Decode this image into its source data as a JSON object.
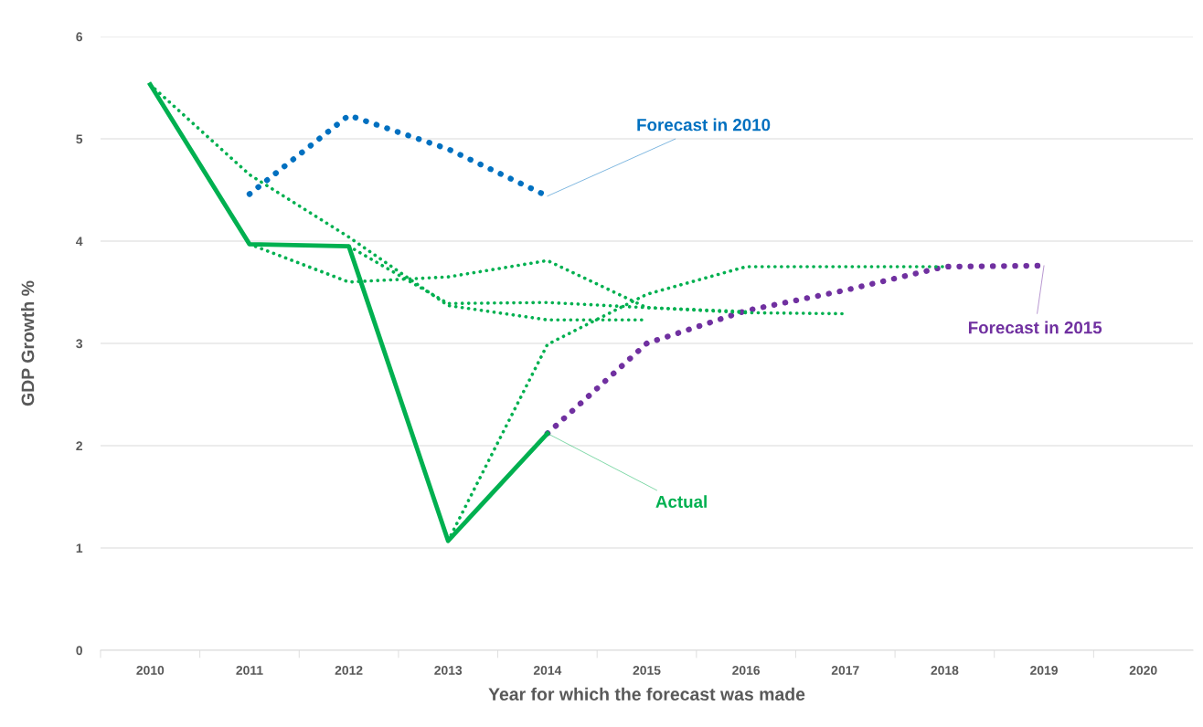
{
  "chart_data": {
    "type": "line",
    "xlabel": "Year for which the forecast was made",
    "ylabel": "GDP Growth %",
    "categories": [
      "2010",
      "2011",
      "2012",
      "2013",
      "2014",
      "2015",
      "2016",
      "2017",
      "2018",
      "2019",
      "2020"
    ],
    "ylim": [
      0,
      6
    ],
    "yticks": [
      0,
      1,
      2,
      3,
      4,
      5,
      6
    ],
    "grid": "y",
    "legend": false,
    "marker": "none",
    "series": [
      {
        "name": "Actual",
        "color": "#00b050",
        "line_style": "solid",
        "values": [
          5.53,
          3.97,
          3.95,
          1.07,
          2.12,
          null,
          null,
          null,
          null,
          null,
          null
        ]
      },
      {
        "name": "Forecast in 2010",
        "color": "#0070c0",
        "line_style": "dotted",
        "values": [
          null,
          4.46,
          5.23,
          4.9,
          4.44,
          null,
          null,
          null,
          null,
          null,
          null
        ]
      },
      {
        "color": "#00b050",
        "line_style": "dotted",
        "values": [
          5.53,
          4.65,
          4.04,
          3.37,
          3.23,
          3.23,
          null,
          null,
          null,
          null,
          null
        ]
      },
      {
        "color": "#00b050",
        "line_style": "dotted",
        "values": [
          null,
          3.97,
          3.6,
          3.65,
          3.81,
          3.35,
          3.3,
          3.29,
          null,
          null,
          null
        ]
      },
      {
        "color": "#00b050",
        "line_style": "dotted",
        "values": [
          null,
          null,
          3.95,
          3.39,
          3.4,
          3.35,
          3.31,
          null,
          null,
          null,
          null
        ]
      },
      {
        "color": "#00b050",
        "line_style": "dotted",
        "values": [
          null,
          null,
          null,
          1.07,
          2.99,
          3.48,
          3.75,
          3.75,
          3.75,
          null,
          null
        ]
      },
      {
        "name": "Forecast in 2015",
        "color": "#7030a0",
        "line_style": "dotted",
        "values": [
          null,
          null,
          null,
          null,
          2.12,
          3.0,
          3.32,
          3.52,
          3.75,
          3.76,
          null
        ]
      }
    ]
  }
}
